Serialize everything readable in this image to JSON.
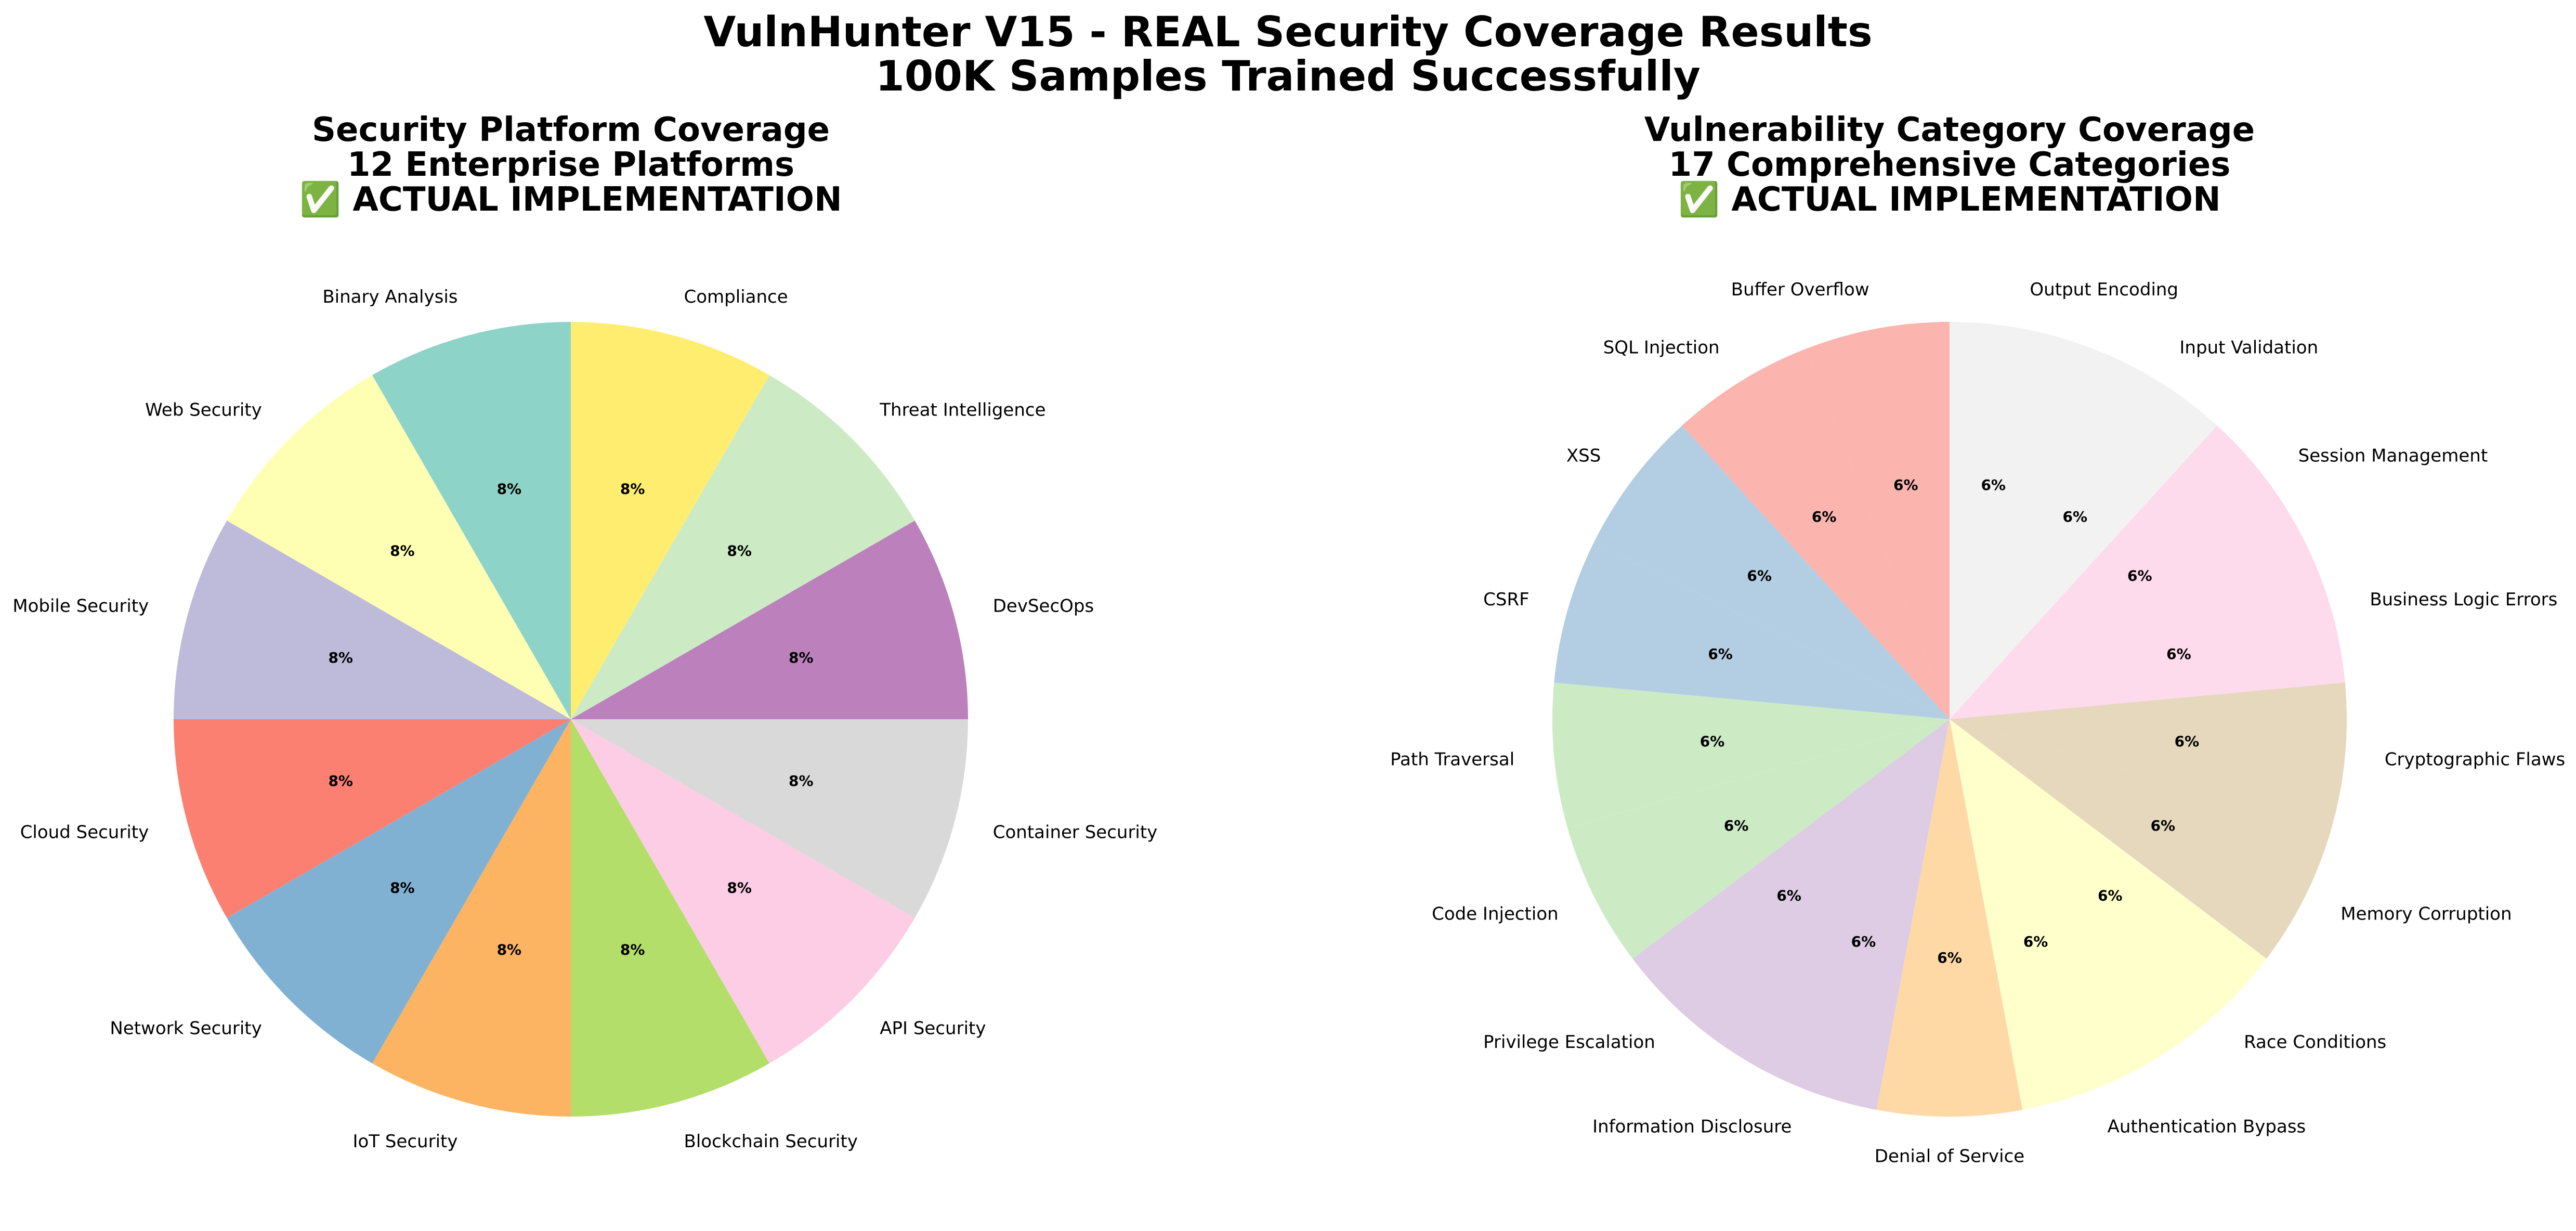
{
  "figure": {
    "title_line1": "VulnHunter V15 - REAL Security Coverage Results",
    "title_line2": "100K Samples Trained Successfully"
  },
  "chart_data": [
    {
      "type": "pie",
      "title": "Security Platform Coverage",
      "subtitle": "12 Enterprise Platforms",
      "status_line": "✅ ACTUAL IMPLEMENTATION",
      "start_angle_deg": 90,
      "direction": "clockwise",
      "value_format": "%",
      "slices": [
        {
          "label": "Compliance",
          "value": 8.33,
          "display": "8%",
          "color": "#ffed6f"
        },
        {
          "label": "Threat Intelligence",
          "value": 8.33,
          "display": "8%",
          "color": "#ccebc5"
        },
        {
          "label": "DevSecOps",
          "value": 8.33,
          "display": "8%",
          "color": "#bc80bd"
        },
        {
          "label": "Container Security",
          "value": 8.33,
          "display": "8%",
          "color": "#d9d9d9"
        },
        {
          "label": "API Security",
          "value": 8.33,
          "display": "8%",
          "color": "#fccde5"
        },
        {
          "label": "Blockchain Security",
          "value": 8.33,
          "display": "8%",
          "color": "#b3de69"
        },
        {
          "label": "IoT Security",
          "value": 8.33,
          "display": "8%",
          "color": "#fdb462"
        },
        {
          "label": "Network Security",
          "value": 8.33,
          "display": "8%",
          "color": "#80b1d3"
        },
        {
          "label": "Cloud Security",
          "value": 8.33,
          "display": "8%",
          "color": "#fb8072"
        },
        {
          "label": "Mobile Security",
          "value": 8.33,
          "display": "8%",
          "color": "#bebada"
        },
        {
          "label": "Web Security",
          "value": 8.33,
          "display": "8%",
          "color": "#ffffb3"
        },
        {
          "label": "Binary Analysis",
          "value": 8.33,
          "display": "8%",
          "color": "#8dd3c7"
        }
      ]
    },
    {
      "type": "pie",
      "title": "Vulnerability Category Coverage",
      "subtitle": "17 Comprehensive Categories",
      "status_line": "✅ ACTUAL IMPLEMENTATION",
      "start_angle_deg": 90,
      "direction": "clockwise",
      "value_format": "%",
      "slices": [
        {
          "label": "Output Encoding",
          "value": 5.88,
          "display": "6%",
          "color": "#f2f2f2"
        },
        {
          "label": "Input Validation",
          "value": 5.88,
          "display": "6%",
          "color": "#f2f2f2"
        },
        {
          "label": "Session Management",
          "value": 5.88,
          "display": "6%",
          "color": "#fddaec"
        },
        {
          "label": "Business Logic Errors",
          "value": 5.88,
          "display": "6%",
          "color": "#fddaec"
        },
        {
          "label": "Cryptographic Flaws",
          "value": 5.88,
          "display": "6%",
          "color": "#e5d8bd"
        },
        {
          "label": "Memory Corruption",
          "value": 5.88,
          "display": "6%",
          "color": "#e5d8bd"
        },
        {
          "label": "Race Conditions",
          "value": 5.88,
          "display": "6%",
          "color": "#ffffcc"
        },
        {
          "label": "Authentication Bypass",
          "value": 5.88,
          "display": "6%",
          "color": "#ffffcc"
        },
        {
          "label": "Denial of Service",
          "value": 5.88,
          "display": "6%",
          "color": "#fed9a6"
        },
        {
          "label": "Information Disclosure",
          "value": 5.88,
          "display": "6%",
          "color": "#decbe4"
        },
        {
          "label": "Privilege Escalation",
          "value": 5.88,
          "display": "6%",
          "color": "#decbe4"
        },
        {
          "label": "Code Injection",
          "value": 5.88,
          "display": "6%",
          "color": "#ccebc5"
        },
        {
          "label": "Path Traversal",
          "value": 5.88,
          "display": "6%",
          "color": "#ccebc5"
        },
        {
          "label": "CSRF",
          "value": 5.88,
          "display": "6%",
          "color": "#b3cde3"
        },
        {
          "label": "XSS",
          "value": 5.88,
          "display": "6%",
          "color": "#b3cde3"
        },
        {
          "label": "SQL Injection",
          "value": 5.88,
          "display": "6%",
          "color": "#fbb4ae"
        },
        {
          "label": "Buffer Overflow",
          "value": 5.88,
          "display": "6%",
          "color": "#fbb4ae"
        }
      ]
    }
  ]
}
